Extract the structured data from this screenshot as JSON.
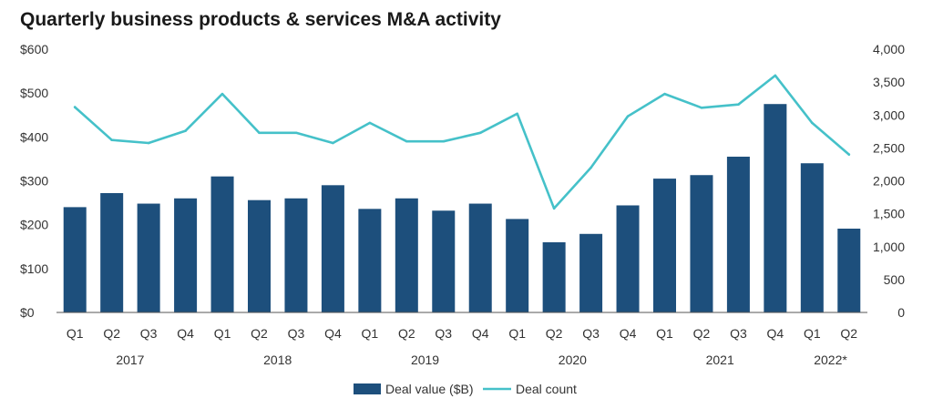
{
  "chart_data": {
    "type": "bar",
    "title": "Quarterly business products & services M&A activity",
    "categories": [
      "Q1",
      "Q2",
      "Q3",
      "Q4",
      "Q1",
      "Q2",
      "Q3",
      "Q4",
      "Q1",
      "Q2",
      "Q3",
      "Q4",
      "Q1",
      "Q2",
      "Q3",
      "Q4",
      "Q1",
      "Q2",
      "Q3",
      "Q4",
      "Q1",
      "Q2"
    ],
    "years": [
      {
        "label": "2017",
        "start": 0,
        "end": 3
      },
      {
        "label": "2018",
        "start": 4,
        "end": 7
      },
      {
        "label": "2019",
        "start": 8,
        "end": 11
      },
      {
        "label": "2020",
        "start": 12,
        "end": 15
      },
      {
        "label": "2021",
        "start": 16,
        "end": 19
      },
      {
        "label": "2022*",
        "start": 20,
        "end": 21
      }
    ],
    "series": [
      {
        "name": "Deal value ($B)",
        "type": "bar",
        "axis": "left",
        "color": "#1d4f7c",
        "values": [
          240,
          272,
          248,
          260,
          310,
          256,
          260,
          290,
          236,
          260,
          232,
          248,
          213,
          160,
          179,
          244,
          305,
          313,
          355,
          475,
          340,
          191
        ]
      },
      {
        "name": "Deal count",
        "type": "line",
        "axis": "right",
        "color": "#45c1c9",
        "values": [
          3120,
          2620,
          2575,
          2760,
          3320,
          2730,
          2730,
          2575,
          2880,
          2600,
          2600,
          2730,
          3020,
          1580,
          2200,
          2980,
          3320,
          3110,
          3160,
          3600,
          2880,
          2400
        ]
      }
    ],
    "y_left": {
      "min": 0,
      "max": 600,
      "ticks": [
        0,
        100,
        200,
        300,
        400,
        500,
        600
      ],
      "tick_labels": [
        "$0",
        "$100",
        "$200",
        "$300",
        "$400",
        "$500",
        "$600"
      ]
    },
    "y_right": {
      "min": 0,
      "max": 4000,
      "ticks": [
        0,
        500,
        1000,
        1500,
        2000,
        2500,
        3000,
        3500,
        4000
      ],
      "tick_labels": [
        "0",
        "500",
        "1,000",
        "1,500",
        "2,000",
        "2,500",
        "3,000",
        "3,500",
        "4,000"
      ]
    },
    "grid": false,
    "legend": "bottom-center"
  }
}
